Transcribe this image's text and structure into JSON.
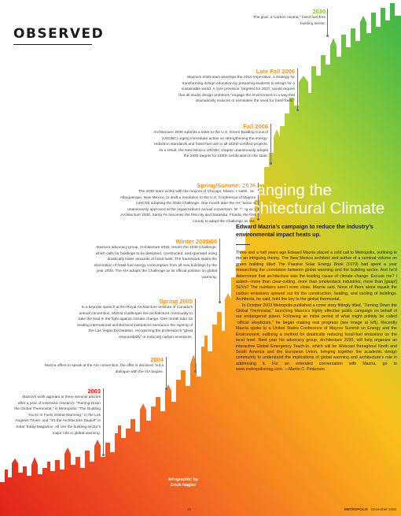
{
  "section": "OBSERVED",
  "headline": "Changing the Architectural Climate",
  "deck": "Edward Mazria’s campaign to reduce the industry’s environmental impact heats up.",
  "credit": {
    "prefix": "Infographic by",
    "name": "Erich Nagler"
  },
  "timeline": [
    {
      "year": "2030",
      "color": "#8bc53f",
      "text": "The goal: a “carbon neutral,” fossil-fuel-free building sector."
    },
    {
      "year": "Late Fall 2006",
      "color": "#f7941d",
      "text": "Mazria’s 2030 team develops the 2010 Imperative, a strategy for transforming design education by preparing students to design for a sustainable world. A core provision, targeted for 2007, would require that all studio design problems “engage the environment in a way that dramatically reduces or eliminates the need for fossil fuels.”"
    },
    {
      "year": "Fall 2006",
      "color": "#f7941d",
      "text": "Architecture 2030 submits a letter to the U.S. Green Building Council (USGBC) urging immediate action on strengthening the energy-reduction standards and fossil-fuel use in all LEED-certified projects. As a result, the New Mexico USGBC chapter unanimously adopts the 2030 targets for LEED certification in the state."
    },
    {
      "year": "Spring/Summer 2006",
      "color": "#f7941d",
      "text": "The 2030 team works with the mayors of Chicago, Miami, Seattle, and Albuquerque, New Mexico, to draft a resolution to the U.S. Conference of Mayors (USCM) adopting the 2030 Challenge. One month later the resolution is unanimously approved at the organization’s annual convention. Working with Architecture 2030, Santa Fe becomes the first city and Sarasota, Florida, the first county to adopt the Challenge as law."
    },
    {
      "year": "Winter 2005/06",
      "color": "#f7941d",
      "text": "Mazria’s advocacy group, Architecture 2030, issues the 2030 Challenge, which calls for buildings to be designed, constructed, and operated using drastically lower amounts of fossil fuels. The framework seeks the elimination of fossil-fuel energy consumption from all new buildings by the year 2030. The AIA adopts the Challenge as its official position on global warming."
    },
    {
      "year": "Spring 2005",
      "color": "#f7941d",
      "text": "In a keynote speech at the Royal Architecture Institute of Canada’s annual convention, Mazria challenges the architecture community to take the lead in the fight against climate change. One month later 16 leading international architectural institutions announce the signing of the Las Vegas Declaration, recognizing the profession’s “great responsibility” in reducing carbon emissions."
    },
    {
      "year": "2004",
      "color": "#f7941d",
      "text": "Mazria offers to speak at the AIA convention; the offer is declined, but a dialogue with the AIA begins."
    },
    {
      "year": "2003",
      "color": "#e2231a",
      "text": "Mazria’s work appears in three seminal articles after a year of extensive research: “Turning Down the Global Thermostat,” in Metropolis; “The Building You’re In Fuels Global Warming,” in the Los Angeles Times; and “It’s the Architecture Stupid!” in Solar Today Magazine. All cite the building sector’s major role in global warming."
    }
  ],
  "body": [
    "Three and a half years ago Edward Mazria placed a cold call to Metropolis, outlining to me an intriguing theory. The New Mexico architect and author of a seminal volume on green building titled The Passive Solar Energy Book (1979) had spent a year researching the correlation between global warming and the building sector. And he’d determined that architecture was the leading cause of climate change. Excuse me? I asked—more than clear-cutting, more than smokestack industries, more than [gasp!] SUVs? The numbers aren’t even close, Mazria said. None of them alone equals the carbon emissions spewed out for the construction, heating, and cooling of buildings. Architects, he said, hold the key to the global thermostat.",
    "In October 2003 Metropolis published a cover story fittingly titled, “Turning Down the Global Thermostat,” launching Mazria’s highly effective public campaign on behalf of our endangered planet. Following an initial period of what might politely be called “official skepticism,” he began making real progress (see image at left). Recently Mazria spoke to a United States Conference of Mayors Summit on Energy and the Environment, outlining a method for drastically reducing fossil-fuel emissions on the local level. Next year his advocacy group, Architecture 2030, will help organize an interactive Global Emergency Teach-In, which will be Webcast throughout North and South America and the European Union, bringing together the academic design community to understand the implications of global warming and architecture’s role in addressing it. For an extended conversation with Mazria, go to www.metropolismag.com. —Martin C. Pedersen"
  ],
  "footer": {
    "page_number": "48",
    "magazine": "METROPOLIS",
    "date": "December 2006"
  }
}
